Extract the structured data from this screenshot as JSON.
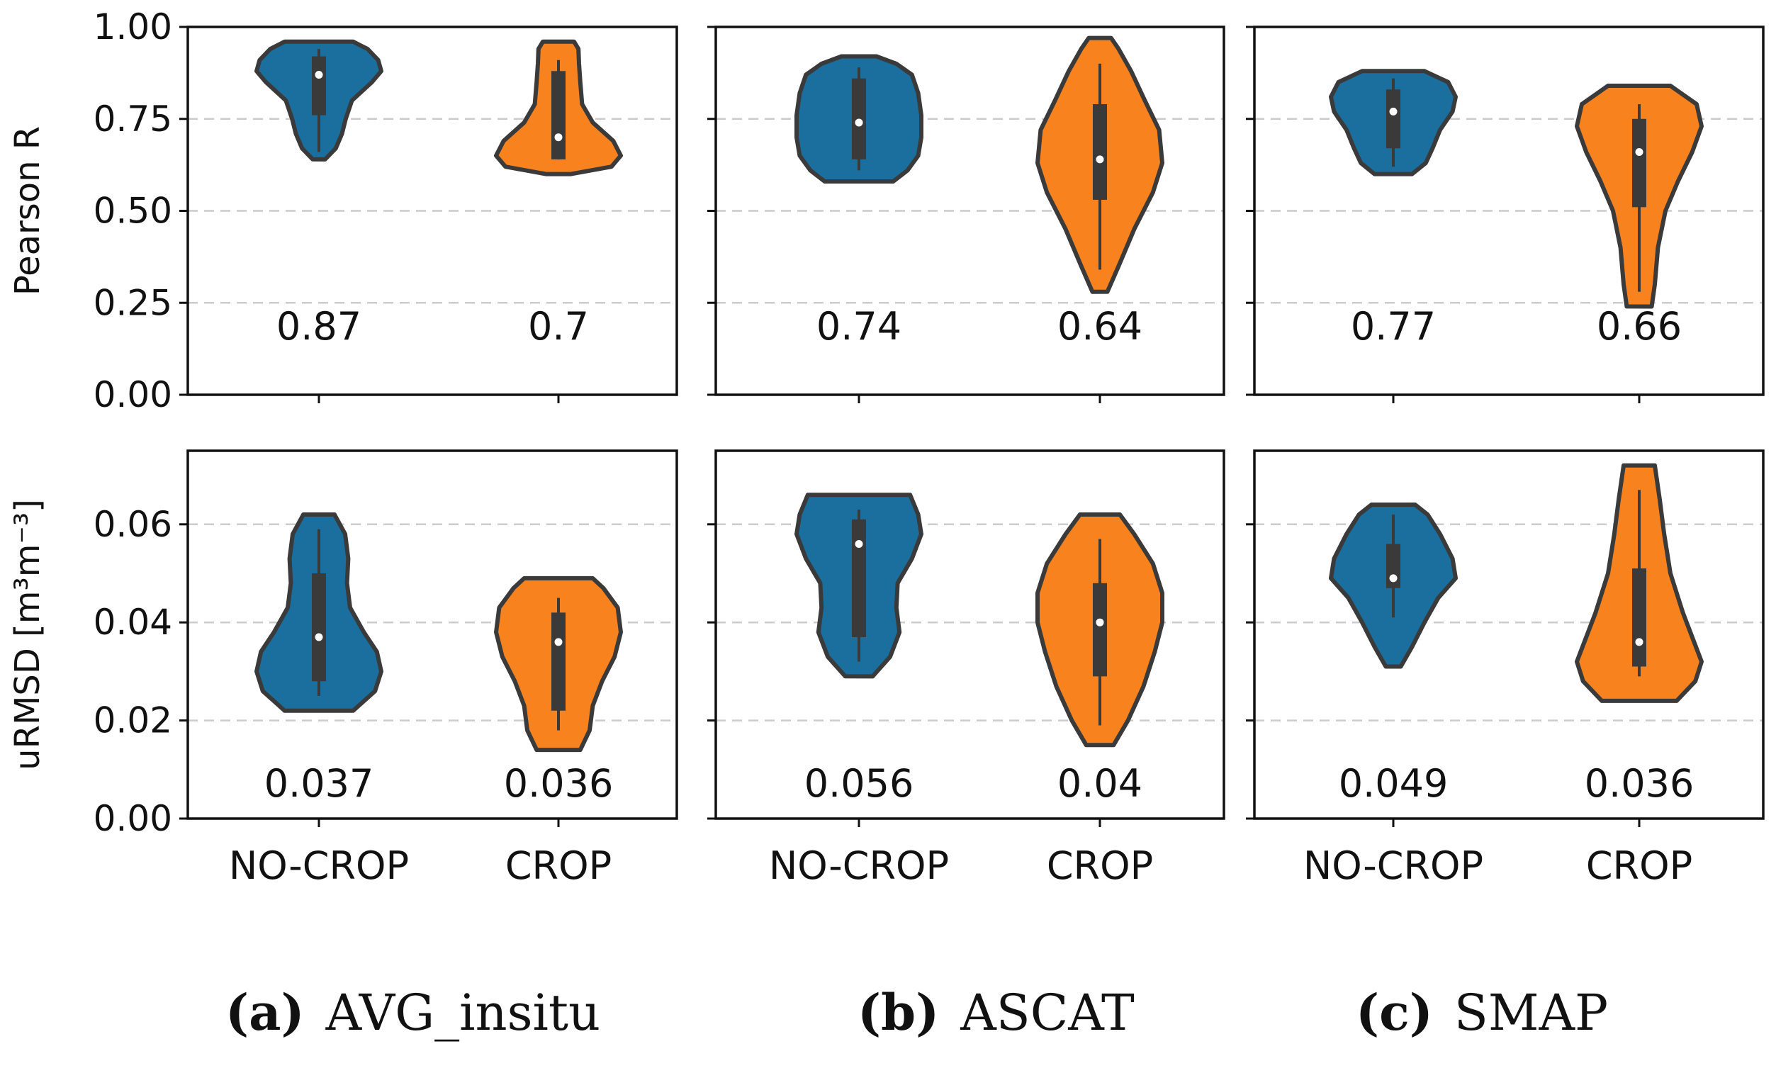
{
  "colors": {
    "nocrop": "#1a6f9f",
    "crop": "#f7821e",
    "edge": "#3a3a3a",
    "grid": "#cccccc",
    "box": "#3a3a3a",
    "median": "#ffffff"
  },
  "chart_data": [
    {
      "type": "violin",
      "panel": "a",
      "metric": "Pearson R",
      "ylabel": "Pearson R",
      "ylim": [
        0,
        1.0
      ],
      "yticks": [
        "0.00",
        "0.25",
        "0.50",
        "0.75",
        "1.00"
      ],
      "categories": [
        "NO-CROP",
        "CROP"
      ],
      "series": [
        {
          "name": "NO-CROP",
          "median": 0.87,
          "median_label": "0.87",
          "min": 0.64,
          "max": 0.96,
          "q1": 0.76,
          "q3": 0.92,
          "whisker_low": 0.66,
          "whisker_high": 0.94,
          "profile": [
            [
              0.64,
              0.1
            ],
            [
              0.67,
              0.27
            ],
            [
              0.71,
              0.37
            ],
            [
              0.75,
              0.43
            ],
            [
              0.8,
              0.53
            ],
            [
              0.85,
              0.85
            ],
            [
              0.88,
              1.0
            ],
            [
              0.91,
              0.95
            ],
            [
              0.94,
              0.78
            ],
            [
              0.96,
              0.55
            ]
          ]
        },
        {
          "name": "CROP",
          "median": 0.7,
          "median_label": "0.7",
          "min": 0.6,
          "max": 0.96,
          "q1": 0.64,
          "q3": 0.88,
          "whisker_low": 0.64,
          "whisker_high": 0.91,
          "profile": [
            [
              0.6,
              0.2
            ],
            [
              0.62,
              0.85
            ],
            [
              0.65,
              1.0
            ],
            [
              0.69,
              0.88
            ],
            [
              0.74,
              0.55
            ],
            [
              0.79,
              0.38
            ],
            [
              0.85,
              0.35
            ],
            [
              0.9,
              0.33
            ],
            [
              0.94,
              0.32
            ],
            [
              0.96,
              0.25
            ]
          ]
        }
      ]
    },
    {
      "type": "violin",
      "panel": "b",
      "metric": "Pearson R",
      "ylim": [
        0,
        1.0
      ],
      "categories": [
        "NO-CROP",
        "CROP"
      ],
      "series": [
        {
          "name": "NO-CROP",
          "median": 0.74,
          "median_label": "0.74",
          "min": 0.58,
          "max": 0.92,
          "q1": 0.64,
          "q3": 0.86,
          "whisker_low": 0.61,
          "whisker_high": 0.89,
          "profile": [
            [
              0.58,
              0.55
            ],
            [
              0.61,
              0.78
            ],
            [
              0.65,
              0.95
            ],
            [
              0.7,
              1.0
            ],
            [
              0.76,
              1.0
            ],
            [
              0.82,
              0.95
            ],
            [
              0.87,
              0.85
            ],
            [
              0.9,
              0.6
            ],
            [
              0.92,
              0.28
            ]
          ]
        },
        {
          "name": "CROP",
          "median": 0.64,
          "median_label": "0.64",
          "min": 0.28,
          "max": 0.97,
          "q1": 0.53,
          "q3": 0.79,
          "whisker_low": 0.34,
          "whisker_high": 0.9,
          "profile": [
            [
              0.28,
              0.12
            ],
            [
              0.35,
              0.3
            ],
            [
              0.45,
              0.55
            ],
            [
              0.55,
              0.85
            ],
            [
              0.63,
              1.0
            ],
            [
              0.72,
              0.95
            ],
            [
              0.8,
              0.72
            ],
            [
              0.88,
              0.5
            ],
            [
              0.94,
              0.3
            ],
            [
              0.97,
              0.18
            ]
          ]
        }
      ]
    },
    {
      "type": "violin",
      "panel": "c",
      "metric": "Pearson R",
      "ylim": [
        0,
        1.0
      ],
      "categories": [
        "NO-CROP",
        "CROP"
      ],
      "series": [
        {
          "name": "NO-CROP",
          "median": 0.77,
          "median_label": "0.77",
          "min": 0.6,
          "max": 0.88,
          "q1": 0.67,
          "q3": 0.83,
          "whisker_low": 0.62,
          "whisker_high": 0.86,
          "profile": [
            [
              0.6,
              0.3
            ],
            [
              0.63,
              0.52
            ],
            [
              0.67,
              0.63
            ],
            [
              0.72,
              0.75
            ],
            [
              0.77,
              0.95
            ],
            [
              0.81,
              1.0
            ],
            [
              0.85,
              0.88
            ],
            [
              0.88,
              0.5
            ]
          ]
        },
        {
          "name": "CROP",
          "median": 0.66,
          "median_label": "0.66",
          "min": 0.24,
          "max": 0.84,
          "q1": 0.51,
          "q3": 0.75,
          "whisker_low": 0.28,
          "whisker_high": 0.79,
          "profile": [
            [
              0.24,
              0.2
            ],
            [
              0.3,
              0.25
            ],
            [
              0.4,
              0.3
            ],
            [
              0.5,
              0.42
            ],
            [
              0.58,
              0.62
            ],
            [
              0.66,
              0.85
            ],
            [
              0.73,
              1.0
            ],
            [
              0.79,
              0.92
            ],
            [
              0.84,
              0.5
            ]
          ]
        }
      ]
    },
    {
      "type": "violin",
      "panel": "a",
      "metric": "uRMSD",
      "ylabel": "uRMSD [m³m⁻³]",
      "ylim": [
        0,
        0.075
      ],
      "yticks": [
        "0.00",
        "0.02",
        "0.04",
        "0.06"
      ],
      "categories": [
        "NO-CROP",
        "CROP"
      ],
      "series": [
        {
          "name": "NO-CROP",
          "median": 0.037,
          "median_label": "0.037",
          "min": 0.022,
          "max": 0.062,
          "q1": 0.028,
          "q3": 0.05,
          "whisker_low": 0.025,
          "whisker_high": 0.059,
          "profile": [
            [
              0.022,
              0.55
            ],
            [
              0.026,
              0.9
            ],
            [
              0.03,
              1.0
            ],
            [
              0.034,
              0.93
            ],
            [
              0.038,
              0.72
            ],
            [
              0.043,
              0.5
            ],
            [
              0.048,
              0.45
            ],
            [
              0.053,
              0.47
            ],
            [
              0.058,
              0.42
            ],
            [
              0.062,
              0.25
            ]
          ]
        },
        {
          "name": "CROP",
          "median": 0.036,
          "median_label": "0.036",
          "min": 0.014,
          "max": 0.049,
          "q1": 0.022,
          "q3": 0.042,
          "whisker_low": 0.018,
          "whisker_high": 0.045,
          "profile": [
            [
              0.014,
              0.35
            ],
            [
              0.018,
              0.5
            ],
            [
              0.023,
              0.55
            ],
            [
              0.028,
              0.7
            ],
            [
              0.033,
              0.9
            ],
            [
              0.038,
              1.0
            ],
            [
              0.043,
              0.95
            ],
            [
              0.047,
              0.72
            ],
            [
              0.049,
              0.55
            ]
          ]
        }
      ]
    },
    {
      "type": "violin",
      "panel": "b",
      "metric": "uRMSD",
      "ylim": [
        0,
        0.075
      ],
      "categories": [
        "NO-CROP",
        "CROP"
      ],
      "series": [
        {
          "name": "NO-CROP",
          "median": 0.056,
          "median_label": "0.056",
          "min": 0.029,
          "max": 0.066,
          "q1": 0.037,
          "q3": 0.061,
          "whisker_low": 0.032,
          "whisker_high": 0.063,
          "profile": [
            [
              0.029,
              0.22
            ],
            [
              0.033,
              0.5
            ],
            [
              0.038,
              0.65
            ],
            [
              0.043,
              0.6
            ],
            [
              0.048,
              0.62
            ],
            [
              0.053,
              0.85
            ],
            [
              0.058,
              1.0
            ],
            [
              0.062,
              0.95
            ],
            [
              0.066,
              0.82
            ]
          ]
        },
        {
          "name": "CROP",
          "median": 0.04,
          "median_label": "0.04",
          "min": 0.015,
          "max": 0.062,
          "q1": 0.029,
          "q3": 0.048,
          "whisker_low": 0.019,
          "whisker_high": 0.057,
          "profile": [
            [
              0.015,
              0.22
            ],
            [
              0.02,
              0.45
            ],
            [
              0.027,
              0.7
            ],
            [
              0.034,
              0.88
            ],
            [
              0.04,
              1.0
            ],
            [
              0.046,
              1.0
            ],
            [
              0.052,
              0.85
            ],
            [
              0.058,
              0.55
            ],
            [
              0.062,
              0.32
            ]
          ]
        }
      ]
    },
    {
      "type": "violin",
      "panel": "c",
      "metric": "uRMSD",
      "ylim": [
        0,
        0.075
      ],
      "categories": [
        "NO-CROP",
        "CROP"
      ],
      "series": [
        {
          "name": "NO-CROP",
          "median": 0.049,
          "median_label": "0.049",
          "min": 0.031,
          "max": 0.064,
          "q1": 0.047,
          "q3": 0.056,
          "whisker_low": 0.041,
          "whisker_high": 0.062,
          "profile": [
            [
              0.031,
              0.12
            ],
            [
              0.035,
              0.3
            ],
            [
              0.04,
              0.5
            ],
            [
              0.045,
              0.72
            ],
            [
              0.049,
              1.0
            ],
            [
              0.053,
              0.95
            ],
            [
              0.058,
              0.75
            ],
            [
              0.062,
              0.55
            ],
            [
              0.064,
              0.35
            ]
          ]
        },
        {
          "name": "CROP",
          "median": 0.036,
          "median_label": "0.036",
          "min": 0.024,
          "max": 0.072,
          "q1": 0.031,
          "q3": 0.051,
          "whisker_low": 0.029,
          "whisker_high": 0.067,
          "profile": [
            [
              0.024,
              0.6
            ],
            [
              0.028,
              0.9
            ],
            [
              0.032,
              1.0
            ],
            [
              0.037,
              0.85
            ],
            [
              0.042,
              0.7
            ],
            [
              0.05,
              0.5
            ],
            [
              0.058,
              0.4
            ],
            [
              0.065,
              0.33
            ],
            [
              0.072,
              0.25
            ]
          ]
        }
      ]
    }
  ],
  "captions": [
    {
      "letter": "(a)",
      "name": "AVG_insitu"
    },
    {
      "letter": "(b)",
      "name": "ASCAT"
    },
    {
      "letter": "(c)",
      "name": "SMAP"
    }
  ]
}
